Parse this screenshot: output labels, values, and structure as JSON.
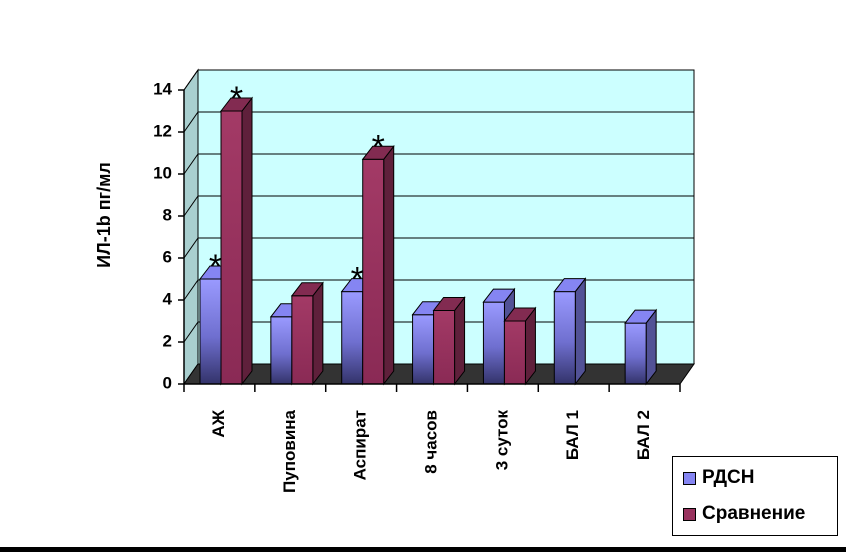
{
  "chart_data": {
    "type": "bar",
    "style": "3d-clustered",
    "ylabel": "ИЛ-1b пг/мл",
    "ylim": [
      0,
      14
    ],
    "yticks": [
      "0",
      "2",
      "4",
      "6",
      "8",
      "10",
      "12",
      "14"
    ],
    "grid": true,
    "legend_position": "bottom-right",
    "categories": [
      "АЖ",
      "Пуповина",
      "Аспират",
      "8 часов",
      "3 суток",
      "БАЛ 1",
      "БАЛ 2"
    ],
    "series": [
      {
        "name": "РДСН",
        "color": "#8585f2",
        "values": [
          5.0,
          3.2,
          4.4,
          3.3,
          3.9,
          4.4,
          2.9
        ]
      },
      {
        "name": "Сравнение",
        "color": "#99335f",
        "values": [
          13.0,
          4.2,
          10.7,
          3.5,
          3.0,
          null,
          null
        ]
      }
    ],
    "annotations": [
      {
        "text": "*",
        "series": 0,
        "category": "АЖ"
      },
      {
        "text": "*",
        "series": 1,
        "category": "АЖ"
      },
      {
        "text": "*",
        "series": 0,
        "category": "Аспират"
      },
      {
        "text": "*",
        "series": 1,
        "category": "Аспират"
      }
    ],
    "plot_colors": {
      "wall": "#ccffff",
      "floor": "#333333",
      "side_wall": "#a9cfcf"
    }
  }
}
